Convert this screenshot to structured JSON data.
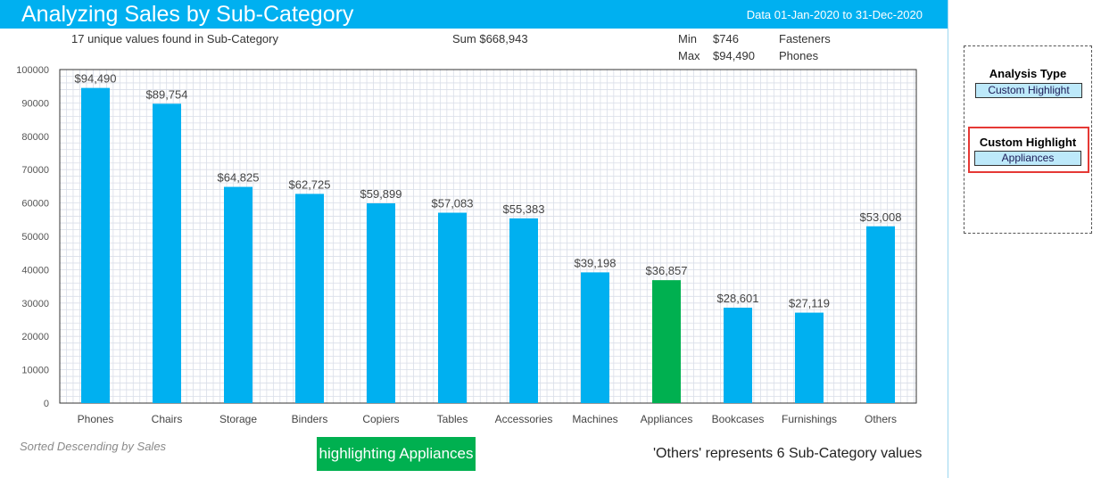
{
  "header": {
    "title": "Analyzing Sales by Sub-Category",
    "date_range": "Data 01-Jan-2020 to 31-Dec-2020"
  },
  "summary": {
    "unique_values": "17 unique values found in Sub-Category",
    "sum": "Sum $668,943",
    "min_label": "Min",
    "min_value": "$746",
    "min_name": "Fasteners",
    "max_label": "Max",
    "max_value": "$94,490",
    "max_name": "Phones"
  },
  "chart_data": {
    "type": "bar",
    "title": "Analyzing Sales by Sub-Category",
    "xlabel": "",
    "ylabel": "",
    "ylim": [
      0,
      100000
    ],
    "yticks": [
      "0",
      "10000",
      "20000",
      "30000",
      "40000",
      "50000",
      "60000",
      "70000",
      "80000",
      "90000",
      "100000"
    ],
    "categories": [
      "Phones",
      "Chairs",
      "Storage",
      "Binders",
      "Copiers",
      "Tables",
      "Accessories",
      "Machines",
      "Appliances",
      "Bookcases",
      "Furnishings",
      "Others"
    ],
    "values": [
      94490,
      89754,
      64825,
      62725,
      59899,
      57083,
      55383,
      39198,
      36857,
      28601,
      27119,
      53008
    ],
    "labels": [
      "$94,490",
      "$89,754",
      "$64,825",
      "$62,725",
      "$59,899",
      "$57,083",
      "$55,383",
      "$39,198",
      "$36,857",
      "$28,601",
      "$27,119",
      "$53,008"
    ],
    "highlighted": "Appliances",
    "grid": true,
    "colors": {
      "bar": "#00B0F0",
      "highlight": "#00B050",
      "grid": "#D9DEE8"
    }
  },
  "footer": {
    "sort_note": "Sorted Descending by Sales",
    "highlight_badge": "highlighting Appliances",
    "others_note": "'Others' represents 6 Sub-Category values"
  },
  "panel": {
    "analysis_type_label": "Analysis Type",
    "analysis_type_value": "Custom Highlight",
    "custom_highlight_label": "Custom Highlight",
    "custom_highlight_value": "Appliances"
  }
}
